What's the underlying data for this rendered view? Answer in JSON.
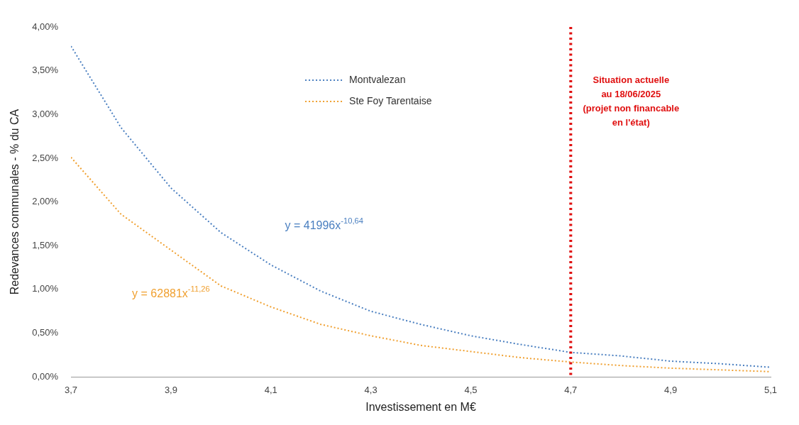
{
  "chart_data": {
    "type": "line",
    "xlabel": "Investissement en M€",
    "ylabel": "Redevances communales - % du CA",
    "x": [
      3.7,
      3.8,
      3.9,
      4.0,
      4.1,
      4.2,
      4.3,
      4.4,
      4.5,
      4.6,
      4.7,
      4.8,
      4.9,
      5.0,
      5.1
    ],
    "series": [
      {
        "name": "Montvalezan",
        "color": "#4a7fc0",
        "values": [
          3.78,
          2.85,
          2.16,
          1.65,
          1.28,
          0.98,
          0.75,
          0.6,
          0.47,
          0.37,
          0.28,
          0.24,
          0.18,
          0.15,
          0.11
        ]
      },
      {
        "name": "Ste Foy Tarentaise",
        "color": "#f0a030",
        "values": [
          2.51,
          1.86,
          1.45,
          1.04,
          0.8,
          0.6,
          0.47,
          0.36,
          0.29,
          0.22,
          0.17,
          0.13,
          0.1,
          0.08,
          0.06
        ]
      }
    ],
    "xlim": [
      3.7,
      5.1
    ],
    "xticks": [
      {
        "value": 3.7,
        "label": "3,7"
      },
      {
        "value": 3.9,
        "label": "3,9"
      },
      {
        "value": 4.1,
        "label": "4,1"
      },
      {
        "value": 4.3,
        "label": "4,3"
      },
      {
        "value": 4.5,
        "label": "4,5"
      },
      {
        "value": 4.7,
        "label": "4,7"
      },
      {
        "value": 4.9,
        "label": "4,9"
      },
      {
        "value": 5.1,
        "label": "5,1"
      }
    ],
    "ylim": [
      0,
      4
    ],
    "yticks": [
      {
        "value": 0,
        "label": "0,00%"
      },
      {
        "value": 0.5,
        "label": "0,50%"
      },
      {
        "value": 1,
        "label": "1,00%"
      },
      {
        "value": 1.5,
        "label": "1,50%"
      },
      {
        "value": 2,
        "label": "2,00%"
      },
      {
        "value": 2.5,
        "label": "2,50%"
      },
      {
        "value": 3,
        "label": "3,00%"
      },
      {
        "value": 3.5,
        "label": "3,50%"
      },
      {
        "value": 4,
        "label": "4,00%"
      }
    ],
    "grid": false,
    "legend": "top left",
    "marker": "none",
    "line_style": "dotted",
    "ref_lines": [
      {
        "axis": "x",
        "value": 4.7,
        "label": "Situation actuelle\nau 18/06/2025\n(projet non financable\nen l'état)",
        "color": "#e01010",
        "line_style": "dotted"
      }
    ],
    "annotations": [
      "y = 41996x$^{-10,64}$",
      "y = 62881x$^{-11,26}$"
    ]
  }
}
